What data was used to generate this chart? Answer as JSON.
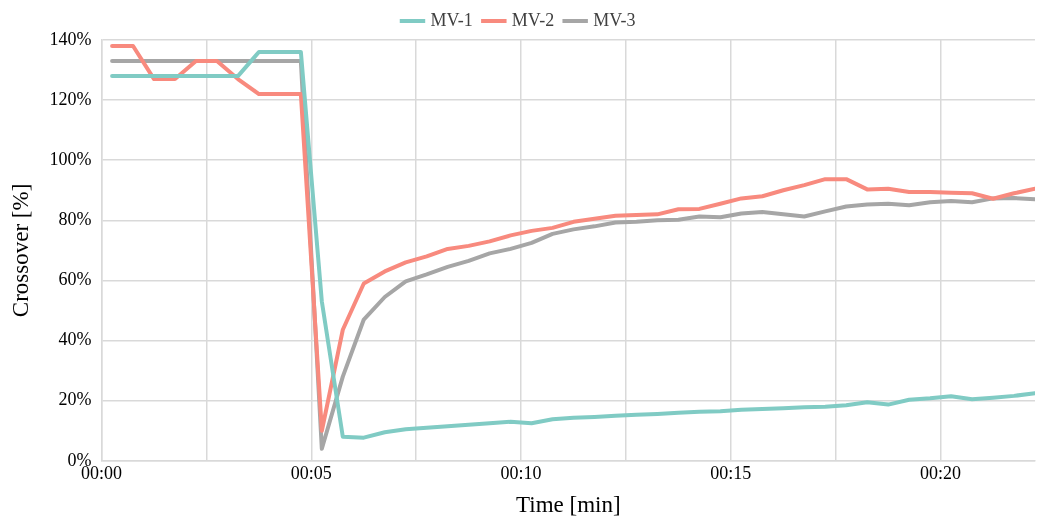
{
  "chart_data": {
    "type": "line",
    "xlabel": "Time [min]",
    "ylabel": "Crossover [%]",
    "x": [
      0.25,
      0.75,
      1.25,
      1.75,
      2.25,
      2.75,
      3.25,
      3.75,
      4.25,
      4.75,
      5.25,
      5.75,
      6.25,
      6.75,
      7.25,
      7.75,
      8.25,
      8.75,
      9.25,
      9.75,
      10.25,
      10.75,
      11.25,
      11.75,
      12.25,
      12.75,
      13.25,
      13.75,
      14.25,
      14.75,
      15.25,
      15.75,
      16.25,
      16.75,
      17.25,
      17.75,
      18.25,
      18.75,
      19.25,
      19.75,
      20.25,
      20.75,
      21.25,
      21.75,
      22.25
    ],
    "series": [
      {
        "name": "MV-1",
        "color": "#80cbc4",
        "values": [
          128,
          128,
          128,
          128,
          128,
          128,
          128,
          136,
          136,
          136,
          53,
          8,
          7.7,
          9.5,
          10.5,
          11,
          11.5,
          12,
          12.5,
          13,
          12.5,
          13.8,
          14.3,
          14.6,
          15,
          15.3,
          15.6,
          16,
          16.3,
          16.5,
          17,
          17.2,
          17.5,
          17.8,
          18,
          18.5,
          19.5,
          18.7,
          20.3,
          20.8,
          21.5,
          20.5,
          21,
          21.6,
          22.5
        ]
      },
      {
        "name": "MV-2",
        "color": "#f88a7e",
        "values": [
          138,
          138,
          127,
          127,
          133,
          133,
          127,
          122,
          122,
          122,
          10,
          43.6,
          59,
          63,
          66,
          68,
          70.5,
          71.5,
          73,
          75,
          76.5,
          77.5,
          79.5,
          80.5,
          81.5,
          81.8,
          82,
          83.7,
          83.8,
          85.5,
          87.3,
          88,
          90,
          91.7,
          93.7,
          93.7,
          90.3,
          90.5,
          89.4,
          89.4,
          89.2,
          89,
          87.2,
          89,
          90.5
        ]
      },
      {
        "name": "MV-3",
        "color": "#a6a6a6",
        "values": [
          133,
          133,
          133,
          133,
          133,
          133,
          133,
          133,
          133,
          133,
          4,
          28,
          47,
          54.5,
          59.7,
          62,
          64.5,
          66.5,
          69,
          70.5,
          72.5,
          75.5,
          77,
          78,
          79.3,
          79.5,
          80,
          80.2,
          81.3,
          81,
          82.3,
          82.8,
          82,
          81.3,
          83,
          84.6,
          85.3,
          85.5,
          85,
          86,
          86.4,
          86,
          87.3,
          87.4,
          87
        ]
      }
    ],
    "xlim": [
      0,
      22.25
    ],
    "xticks": [
      {
        "value": 0,
        "label": "00:00"
      },
      {
        "value": 2.5,
        "label": null
      },
      {
        "value": 5,
        "label": "00:05"
      },
      {
        "value": 7.5,
        "label": null
      },
      {
        "value": 10,
        "label": "00:10"
      },
      {
        "value": 12.5,
        "label": null
      },
      {
        "value": 15,
        "label": "00:15"
      },
      {
        "value": 17.5,
        "label": null
      },
      {
        "value": 20,
        "label": "00:20"
      }
    ],
    "ylim": [
      0,
      140
    ],
    "yticks": [
      {
        "value": 0,
        "label": "0%"
      },
      {
        "value": 20,
        "label": "20%"
      },
      {
        "value": 40,
        "label": "40%"
      },
      {
        "value": 60,
        "label": "60%"
      },
      {
        "value": 80,
        "label": "80%"
      },
      {
        "value": 100,
        "label": "100%"
      },
      {
        "value": 120,
        "label": "120%"
      },
      {
        "value": 140,
        "label": "140%"
      }
    ],
    "grid": true,
    "legend": "top",
    "marker": "none",
    "line_style": "solid"
  }
}
